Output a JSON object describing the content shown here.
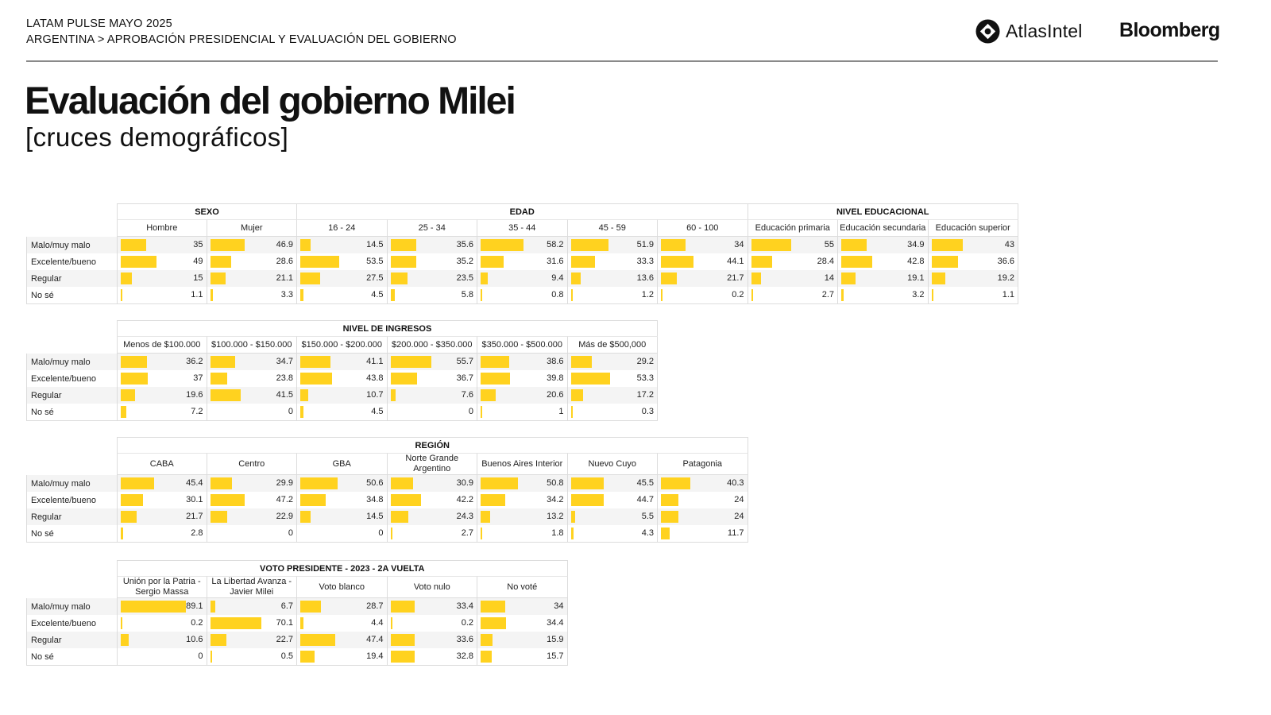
{
  "header": {
    "line1": "LATAM PULSE MAYO 2025",
    "line2": "ARGENTINA > APROBACIÓN PRESIDENCIAL Y EVALUACIÓN DEL GOBIERNO",
    "brand_atlas": "AtlasIntel",
    "brand_bloomberg": "Bloomberg"
  },
  "title": "Evaluación del gobierno Milei",
  "subtitle": "[cruces demográficos]",
  "colors": {
    "bar": "#ffd21f",
    "rule": "#8a8a8a",
    "grid": "#dcdcdc"
  },
  "row_labels": [
    "Malo/muy malo",
    "Excelente/bueno",
    "Regular",
    "No sé"
  ],
  "chart_data": [
    {
      "type": "table",
      "groups": [
        {
          "name": "SEXO",
          "categories": [
            "Hombre",
            "Mujer"
          ]
        },
        {
          "name": "EDAD",
          "categories": [
            "16 - 24",
            "25 - 34",
            "35 - 44",
            "45 - 59",
            "60 - 100"
          ]
        },
        {
          "name": "NIVEL EDUCACIONAL",
          "categories": [
            "Educación primaria",
            "Educación secundaria",
            "Educación superior"
          ]
        }
      ],
      "rows": [
        "Malo/muy malo",
        "Excelente/bueno",
        "Regular",
        "No sé"
      ],
      "values": [
        [
          35,
          49,
          15,
          1.1
        ],
        [
          46.9,
          28.6,
          21.1,
          3.3
        ],
        [
          14.5,
          53.5,
          27.5,
          4.5
        ],
        [
          35.6,
          35.2,
          23.5,
          5.8
        ],
        [
          58.2,
          31.6,
          9.4,
          0.8
        ],
        [
          51.9,
          33.3,
          13.6,
          1.2
        ],
        [
          34,
          44.1,
          21.7,
          0.2
        ],
        [
          55,
          28.4,
          14,
          2.7
        ],
        [
          34.9,
          42.8,
          19.1,
          3.2
        ],
        [
          43,
          36.6,
          19.2,
          1.1
        ]
      ]
    },
    {
      "type": "table",
      "groups": [
        {
          "name": "NIVEL DE INGRESOS",
          "categories": [
            "Menos de $100.000",
            "$100.000 - $150.000",
            "$150.000 - $200.000",
            "$200.000 - $350.000",
            "$350.000 - $500.000",
            "Más de $500,000"
          ]
        }
      ],
      "rows": [
        "Malo/muy malo",
        "Excelente/bueno",
        "Regular",
        "No sé"
      ],
      "values": [
        [
          36.2,
          37,
          19.6,
          7.2
        ],
        [
          34.7,
          23.8,
          41.5,
          0
        ],
        [
          41.1,
          43.8,
          10.7,
          4.5
        ],
        [
          55.7,
          36.7,
          7.6,
          0
        ],
        [
          38.6,
          39.8,
          20.6,
          1
        ],
        [
          29.2,
          53.3,
          17.2,
          0.3
        ]
      ]
    },
    {
      "type": "table",
      "groups": [
        {
          "name": "REGIÓN",
          "categories": [
            "CABA",
            "Centro",
            "GBA",
            "Norte Grande Argentino",
            "Buenos Aires Interior",
            "Nuevo Cuyo",
            "Patagonia"
          ]
        }
      ],
      "rows": [
        "Malo/muy malo",
        "Excelente/bueno",
        "Regular",
        "No sé"
      ],
      "values": [
        [
          45.4,
          30.1,
          21.7,
          2.8
        ],
        [
          29.9,
          47.2,
          22.9,
          0
        ],
        [
          50.6,
          34.8,
          14.5,
          0
        ],
        [
          30.9,
          42.2,
          24.3,
          2.7
        ],
        [
          50.8,
          34.2,
          13.2,
          1.8
        ],
        [
          45.5,
          44.7,
          5.5,
          4.3
        ],
        [
          40.3,
          24,
          24,
          11.7
        ]
      ]
    },
    {
      "type": "table",
      "groups": [
        {
          "name": "VOTO PRESIDENTE - 2023 - 2A VUELTA",
          "categories": [
            "Unión por la Patria - Sergio Massa",
            "La Libertad Avanza - Javier Milei",
            "Voto blanco",
            "Voto nulo",
            "No voté"
          ]
        }
      ],
      "rows": [
        "Malo/muy malo",
        "Excelente/bueno",
        "Regular",
        "No sé"
      ],
      "values": [
        [
          89.1,
          0.2,
          10.6,
          0
        ],
        [
          6.7,
          70.1,
          22.7,
          0.5
        ],
        [
          28.7,
          4.4,
          47.4,
          19.4
        ],
        [
          33.4,
          0.2,
          33.6,
          32.8
        ],
        [
          34,
          34.4,
          15.9,
          15.7
        ]
      ]
    }
  ]
}
